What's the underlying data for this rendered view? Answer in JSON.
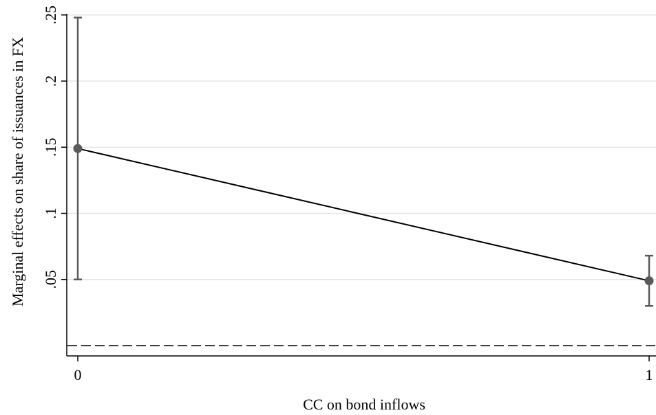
{
  "chart_data": {
    "type": "line",
    "title": "",
    "xlabel": "CC on bond inflows",
    "ylabel": "Marginal effects on share of issuances in FX",
    "x": [
      0,
      1
    ],
    "x_tick_labels": [
      "0",
      "1"
    ],
    "xlim": [
      0,
      1
    ],
    "y_ticks": [
      0.05,
      0.1,
      0.15,
      0.2,
      0.25
    ],
    "y_tick_labels": [
      ".05",
      ".1",
      ".15",
      ".2",
      ".25"
    ],
    "ylim": [
      0,
      0.25
    ],
    "grid": true,
    "reference_line": {
      "y": 0,
      "style": "dashed"
    },
    "series": [
      {
        "values": [
          0.149,
          0.049
        ],
        "ci_lower": [
          0.05,
          0.03
        ],
        "ci_upper": [
          0.248,
          0.068
        ]
      }
    ]
  },
  "colors": {
    "line": "#000000",
    "marker": "#5a5a5a",
    "error_bar": "#5a5a5a",
    "grid": "#e6e6e6",
    "reference_line": "#000000",
    "background": "#ffffff"
  }
}
